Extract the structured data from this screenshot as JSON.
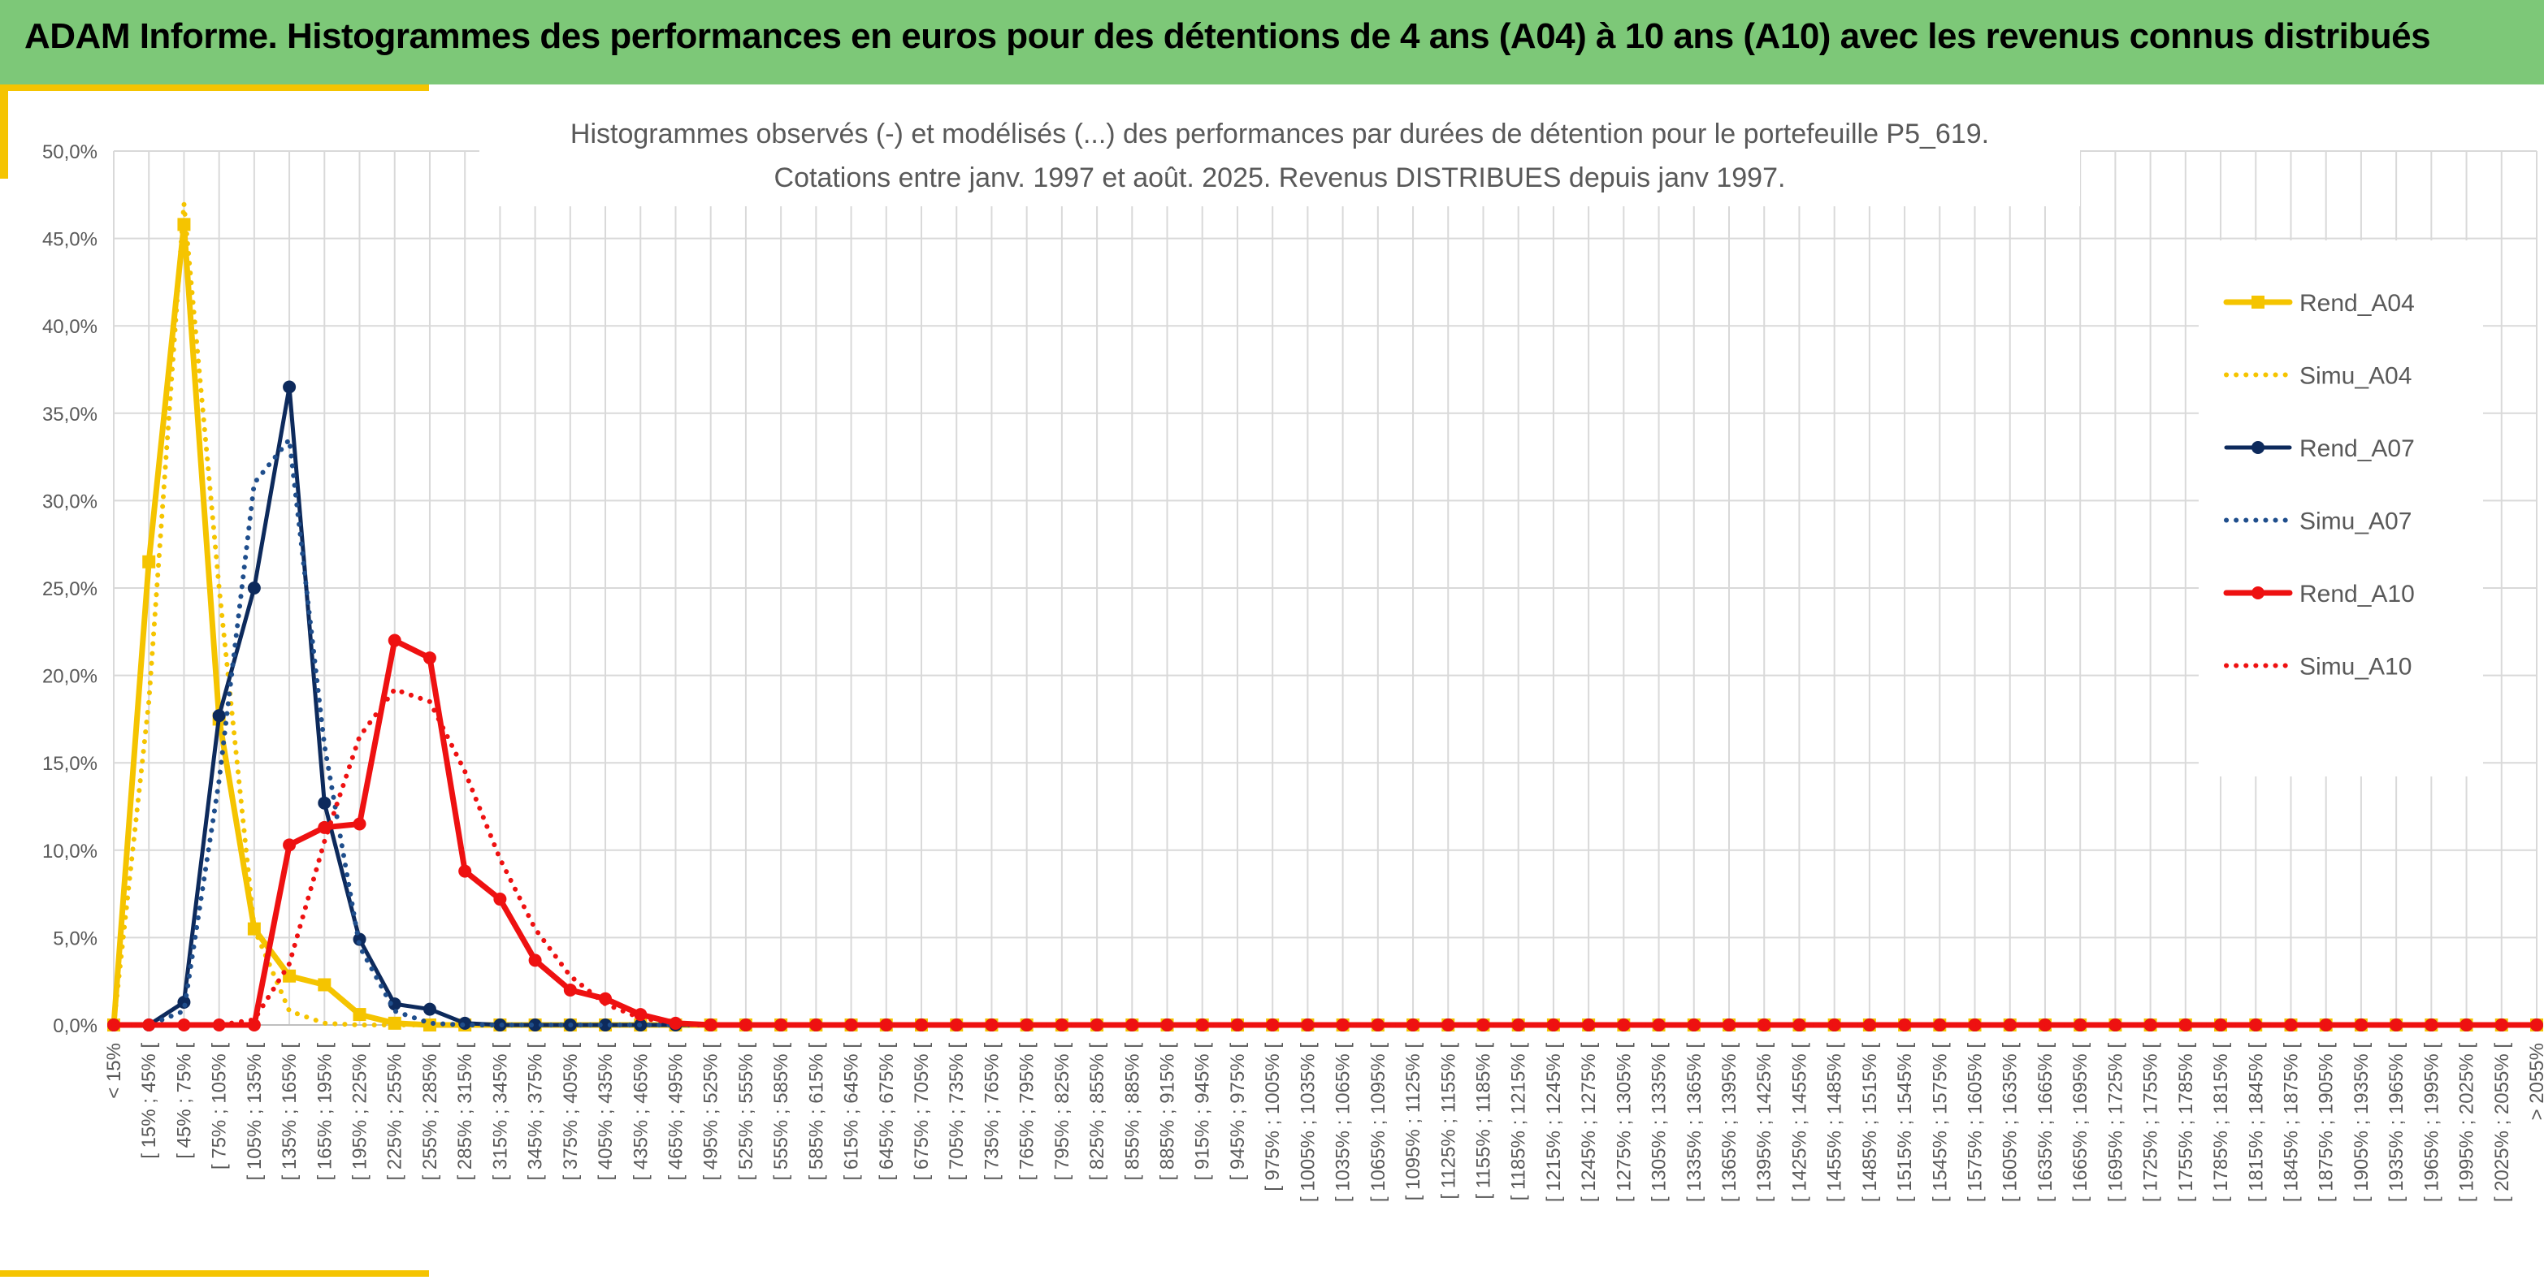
{
  "header": {
    "title": "ADAM Informe. Histogrammes des performances en euros pour des détentions de 4 ans (A04) à 10 ans (A10) avec les revenus connus distribués"
  },
  "chart_data": {
    "type": "line",
    "title": "Histogrammes observés (-) et modélisés (...) des performances par durées de détention pour le portefeuille P5_619.",
    "subtitle": "Cotations entre janv. 1997 et août. 2025. Revenus DISTRIBUES depuis janv 1997.",
    "xlabel": "",
    "ylabel": "",
    "ylim": [
      0,
      50
    ],
    "yticks": [
      "0,0%",
      "5,0%",
      "10,0%",
      "15,0%",
      "20,0%",
      "25,0%",
      "30,0%",
      "35,0%",
      "40,0%",
      "45,0%",
      "50,0%"
    ],
    "grid": true,
    "legend_position": "right",
    "categories": [
      "< 15%",
      "[ 15% ; 45% [",
      "[ 45% ; 75% [",
      "[ 75% ; 105% [",
      "[ 105% ; 135% [",
      "[ 135% ; 165% [",
      "[ 165% ; 195% [",
      "[ 195% ; 225% [",
      "[ 225% ; 255% [",
      "[ 255% ; 285% [",
      "[ 285% ; 315% [",
      "[ 315% ; 345% [",
      "[ 345% ; 375% [",
      "[ 375% ; 405% [",
      "[ 405% ; 435% [",
      "[ 435% ; 465% [",
      "[ 465% ; 495% [",
      "[ 495% ; 525% [",
      "[ 525% ; 555% [",
      "[ 555% ; 585% [",
      "[ 585% ; 615% [",
      "[ 615% ; 645% [",
      "[ 645% ; 675% [",
      "[ 675% ; 705% [",
      "[ 705% ; 735% [",
      "[ 735% ; 765% [",
      "[ 765% ; 795% [",
      "[ 795% ; 825% [",
      "[ 825% ; 855% [",
      "[ 855% ; 885% [",
      "[ 885% ; 915% [",
      "[ 915% ; 945% [",
      "[ 945% ; 975% [",
      "[ 975% ; 1005% [",
      "[ 1005% ; 1035% [",
      "[ 1035% ; 1065% [",
      "[ 1065% ; 1095% [",
      "[ 1095% ; 1125% [",
      "[ 1125% ; 1155% [",
      "[ 1155% ; 1185% [",
      "[ 1185% ; 1215% [",
      "[ 1215% ; 1245% [",
      "[ 1245% ; 1275% [",
      "[ 1275% ; 1305% [",
      "[ 1305% ; 1335% [",
      "[ 1335% ; 1365% [",
      "[ 1365% ; 1395% [",
      "[ 1395% ; 1425% [",
      "[ 1425% ; 1455% [",
      "[ 1455% ; 1485% [",
      "[ 1485% ; 1515% [",
      "[ 1515% ; 1545% [",
      "[ 1545% ; 1575% [",
      "[ 1575% ; 1605% [",
      "[ 1605% ; 1635% [",
      "[ 1635% ; 1665% [",
      "[ 1665% ; 1695% [",
      "[ 1695% ; 1725% [",
      "[ 1725% ; 1755% [",
      "[ 1755% ; 1785% [",
      "[ 1785% ; 1815% [",
      "[ 1815% ; 1845% [",
      "[ 1845% ; 1875% [",
      "[ 1875% ; 1905% [",
      "[ 1905% ; 1935% [",
      "[ 1935% ; 1965% [",
      "[ 1965% ; 1995% [",
      "[ 1995% ; 2025% [",
      "[ 2025% ; 2055% [",
      "> 2055%"
    ],
    "series": [
      {
        "name": "Rend_A04",
        "color": "#f5c400",
        "style": "solid",
        "marker": "square",
        "values": [
          0,
          26.5,
          45.8,
          17.5,
          5.5,
          2.8,
          2.3,
          0.6,
          0.1,
          0,
          0,
          0,
          0,
          0,
          0,
          0,
          0,
          0,
          0,
          0,
          0,
          0,
          0,
          0,
          0,
          0,
          0,
          0,
          0,
          0,
          0,
          0,
          0,
          0,
          0,
          0,
          0,
          0,
          0,
          0,
          0,
          0,
          0,
          0,
          0,
          0,
          0,
          0,
          0,
          0,
          0,
          0,
          0,
          0,
          0,
          0,
          0,
          0,
          0,
          0,
          0,
          0,
          0,
          0,
          0,
          0,
          0,
          0,
          0,
          0
        ]
      },
      {
        "name": "Simu_A04",
        "color": "#f5c400",
        "style": "dotted",
        "marker": "none",
        "values": [
          0,
          18.5,
          47.0,
          25.0,
          5.5,
          0.8,
          0.1,
          0,
          0,
          0,
          0,
          0,
          0,
          0,
          0,
          0,
          0,
          0,
          0,
          0,
          0,
          0,
          0,
          0,
          0,
          0,
          0,
          0,
          0,
          0,
          0,
          0,
          0,
          0,
          0,
          0,
          0,
          0,
          0,
          0,
          0,
          0,
          0,
          0,
          0,
          0,
          0,
          0,
          0,
          0,
          0,
          0,
          0,
          0,
          0,
          0,
          0,
          0,
          0,
          0,
          0,
          0,
          0,
          0,
          0,
          0,
          0,
          0,
          0,
          0
        ]
      },
      {
        "name": "Rend_A07",
        "color": "#0d2a5c",
        "style": "solid",
        "marker": "circle",
        "values": [
          0,
          0,
          1.3,
          17.7,
          25.0,
          36.5,
          12.7,
          4.9,
          1.2,
          0.9,
          0.1,
          0,
          0,
          0,
          0,
          0,
          0,
          0,
          0,
          0,
          0,
          0,
          0,
          0,
          0,
          0,
          0,
          0,
          0,
          0,
          0,
          0,
          0,
          0,
          0,
          0,
          0,
          0,
          0,
          0,
          0,
          0,
          0,
          0,
          0,
          0,
          0,
          0,
          0,
          0,
          0,
          0,
          0,
          0,
          0,
          0,
          0,
          0,
          0,
          0,
          0,
          0,
          0,
          0,
          0,
          0,
          0,
          0,
          0,
          0
        ]
      },
      {
        "name": "Simu_A07",
        "color": "#1f4e8c",
        "style": "dotted",
        "marker": "none",
        "values": [
          0,
          0,
          0.8,
          14.0,
          31.0,
          33.5,
          16.0,
          4.5,
          0.8,
          0.1,
          0,
          0,
          0,
          0,
          0,
          0,
          0,
          0,
          0,
          0,
          0,
          0,
          0,
          0,
          0,
          0,
          0,
          0,
          0,
          0,
          0,
          0,
          0,
          0,
          0,
          0,
          0,
          0,
          0,
          0,
          0,
          0,
          0,
          0,
          0,
          0,
          0,
          0,
          0,
          0,
          0,
          0,
          0,
          0,
          0,
          0,
          0,
          0,
          0,
          0,
          0,
          0,
          0,
          0,
          0,
          0,
          0,
          0,
          0,
          0
        ]
      },
      {
        "name": "Rend_A10",
        "color": "#ee1111",
        "style": "solid",
        "marker": "circle",
        "values": [
          0,
          0,
          0,
          0,
          0,
          10.3,
          11.3,
          11.5,
          22.0,
          21.0,
          8.8,
          7.2,
          3.7,
          2.0,
          1.5,
          0.6,
          0.1,
          0,
          0,
          0,
          0,
          0,
          0,
          0,
          0,
          0,
          0,
          0,
          0,
          0,
          0,
          0,
          0,
          0,
          0,
          0,
          0,
          0,
          0,
          0,
          0,
          0,
          0,
          0,
          0,
          0,
          0,
          0,
          0,
          0,
          0,
          0,
          0,
          0,
          0,
          0,
          0,
          0,
          0,
          0,
          0,
          0,
          0,
          0,
          0,
          0,
          0,
          0,
          0,
          0
        ]
      },
      {
        "name": "Simu_A10",
        "color": "#ee1111",
        "style": "dotted",
        "marker": "none",
        "values": [
          0,
          0,
          0,
          0,
          0.3,
          3.5,
          10.5,
          16.5,
          19.2,
          18.5,
          14.5,
          9.5,
          5.5,
          2.8,
          1.2,
          0.4,
          0.1,
          0,
          0,
          0,
          0,
          0,
          0,
          0,
          0,
          0,
          0,
          0,
          0,
          0,
          0,
          0,
          0,
          0,
          0,
          0,
          0,
          0,
          0,
          0,
          0,
          0,
          0,
          0,
          0,
          0,
          0,
          0,
          0,
          0,
          0,
          0,
          0,
          0,
          0,
          0,
          0,
          0,
          0,
          0,
          0,
          0,
          0,
          0,
          0,
          0,
          0,
          0,
          0,
          0
        ]
      }
    ]
  }
}
